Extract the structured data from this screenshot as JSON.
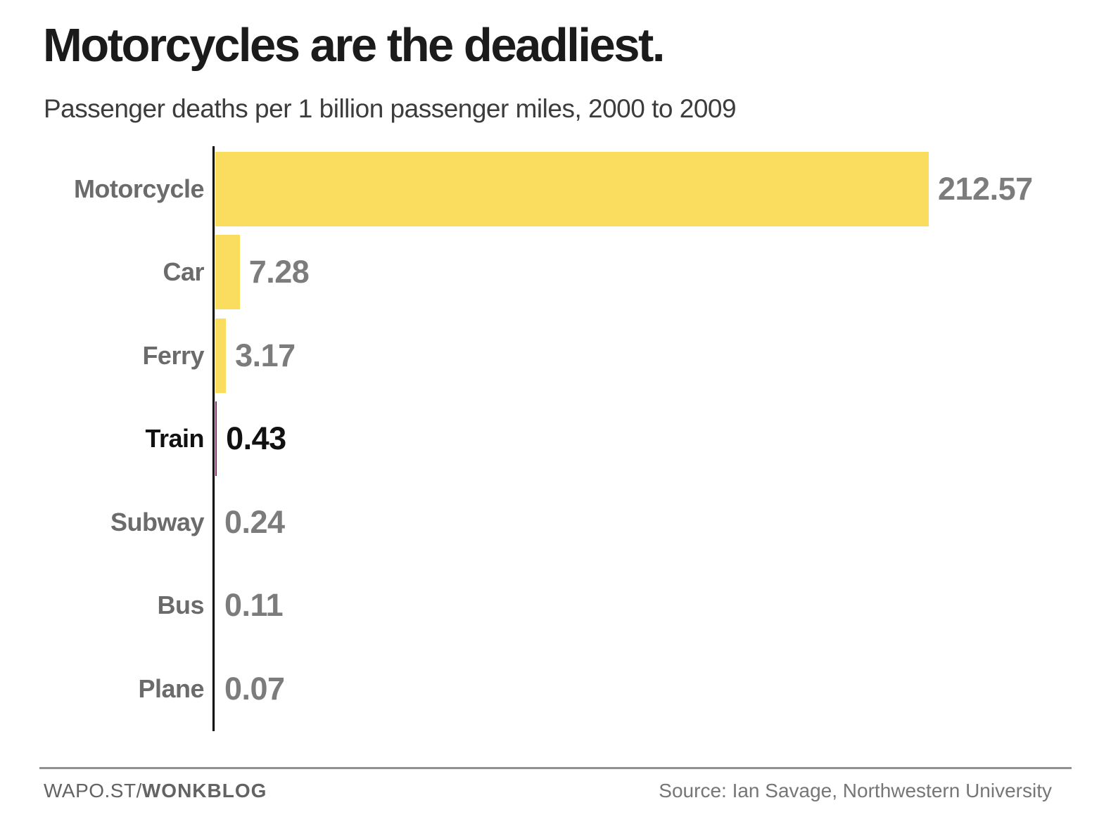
{
  "header": {
    "title": "Motorcycles are the deadliest.",
    "subtitle": "Passenger deaths per 1 billion passenger miles, 2000 to 2009"
  },
  "chart_data": {
    "type": "bar",
    "orientation": "horizontal",
    "title": "Motorcycles are the deadliest.",
    "subtitle": "Passenger deaths per 1 billion passenger miles, 2000 to 2009",
    "categories": [
      "Motorcycle",
      "Car",
      "Ferry",
      "Train",
      "Subway",
      "Bus",
      "Plane"
    ],
    "values": [
      212.57,
      7.28,
      3.17,
      0.43,
      0.24,
      0.11,
      0.07
    ],
    "value_labels": [
      "212.57",
      "7.28",
      "3.17",
      "0.43",
      "0.24",
      "0.11",
      "0.07"
    ],
    "xlim": [
      0,
      212.57
    ],
    "grid": false,
    "legend_position": "none",
    "value_label_position": "end-of-bar",
    "bar_color": "#FADC5F",
    "highlight_category": "Train",
    "highlight_bar_color": "#8A2E6B",
    "label_color": "#6B6B6B",
    "value_color": "#7C7C7C",
    "highlight_text_color": "#111111",
    "axis_color": "#000000"
  },
  "footer": {
    "brand_prefix": "WAPO.ST/",
    "brand_bold": "WONKBLOG",
    "source": "Source: Ian Savage, Northwestern University"
  }
}
